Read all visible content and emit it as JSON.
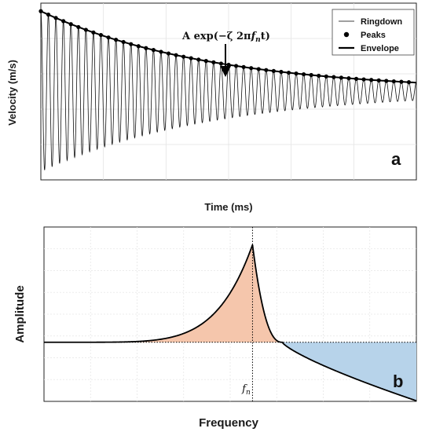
{
  "chart_data": [
    {
      "id": "a",
      "type": "line",
      "panel_label": "a",
      "xlabel": "Time (ms)",
      "ylabel": "Velocity (m/s)",
      "grid": true,
      "legend_position": "top-right",
      "legend": [
        {
          "name": "Ringdown",
          "style": "thin-line"
        },
        {
          "name": "Peaks",
          "style": "dot"
        },
        {
          "name": "Envelope",
          "style": "thick-line"
        }
      ],
      "annotation": {
        "prefix": "A exp(−ζ 2π",
        "f": "f",
        "sub": "n",
        "suffix": "t)"
      },
      "series": [
        {
          "name": "Ringdown",
          "kind": "damped-sine",
          "amplitude": 1.0,
          "cycles": 50,
          "decay_rate": 2.2,
          "offset": 0.0
        },
        {
          "name": "Peaks",
          "kind": "envelope-points",
          "count": 50
        },
        {
          "name": "Envelope",
          "kind": "exponential",
          "amplitude": 1.0,
          "decay_rate": 2.2
        }
      ],
      "xlim": [
        0,
        1
      ],
      "ylim": [
        -1.1,
        1.1
      ]
    },
    {
      "id": "b",
      "type": "area",
      "panel_label": "b",
      "xlabel": "Frequency",
      "ylabel": "Amplitude",
      "grid": true,
      "resonance_label": {
        "f": "f",
        "sub": "n"
      },
      "resonance_x": 0.56,
      "baseline_y": 0.0,
      "crossing_x": 0.64,
      "peak_y": 1.65,
      "colors": {
        "above": "#f5c6ac",
        "below": "#b7d3ea",
        "curve": "#000000"
      },
      "xlim": [
        0,
        1
      ],
      "ylim": [
        -1.0,
        1.95
      ]
    }
  ]
}
